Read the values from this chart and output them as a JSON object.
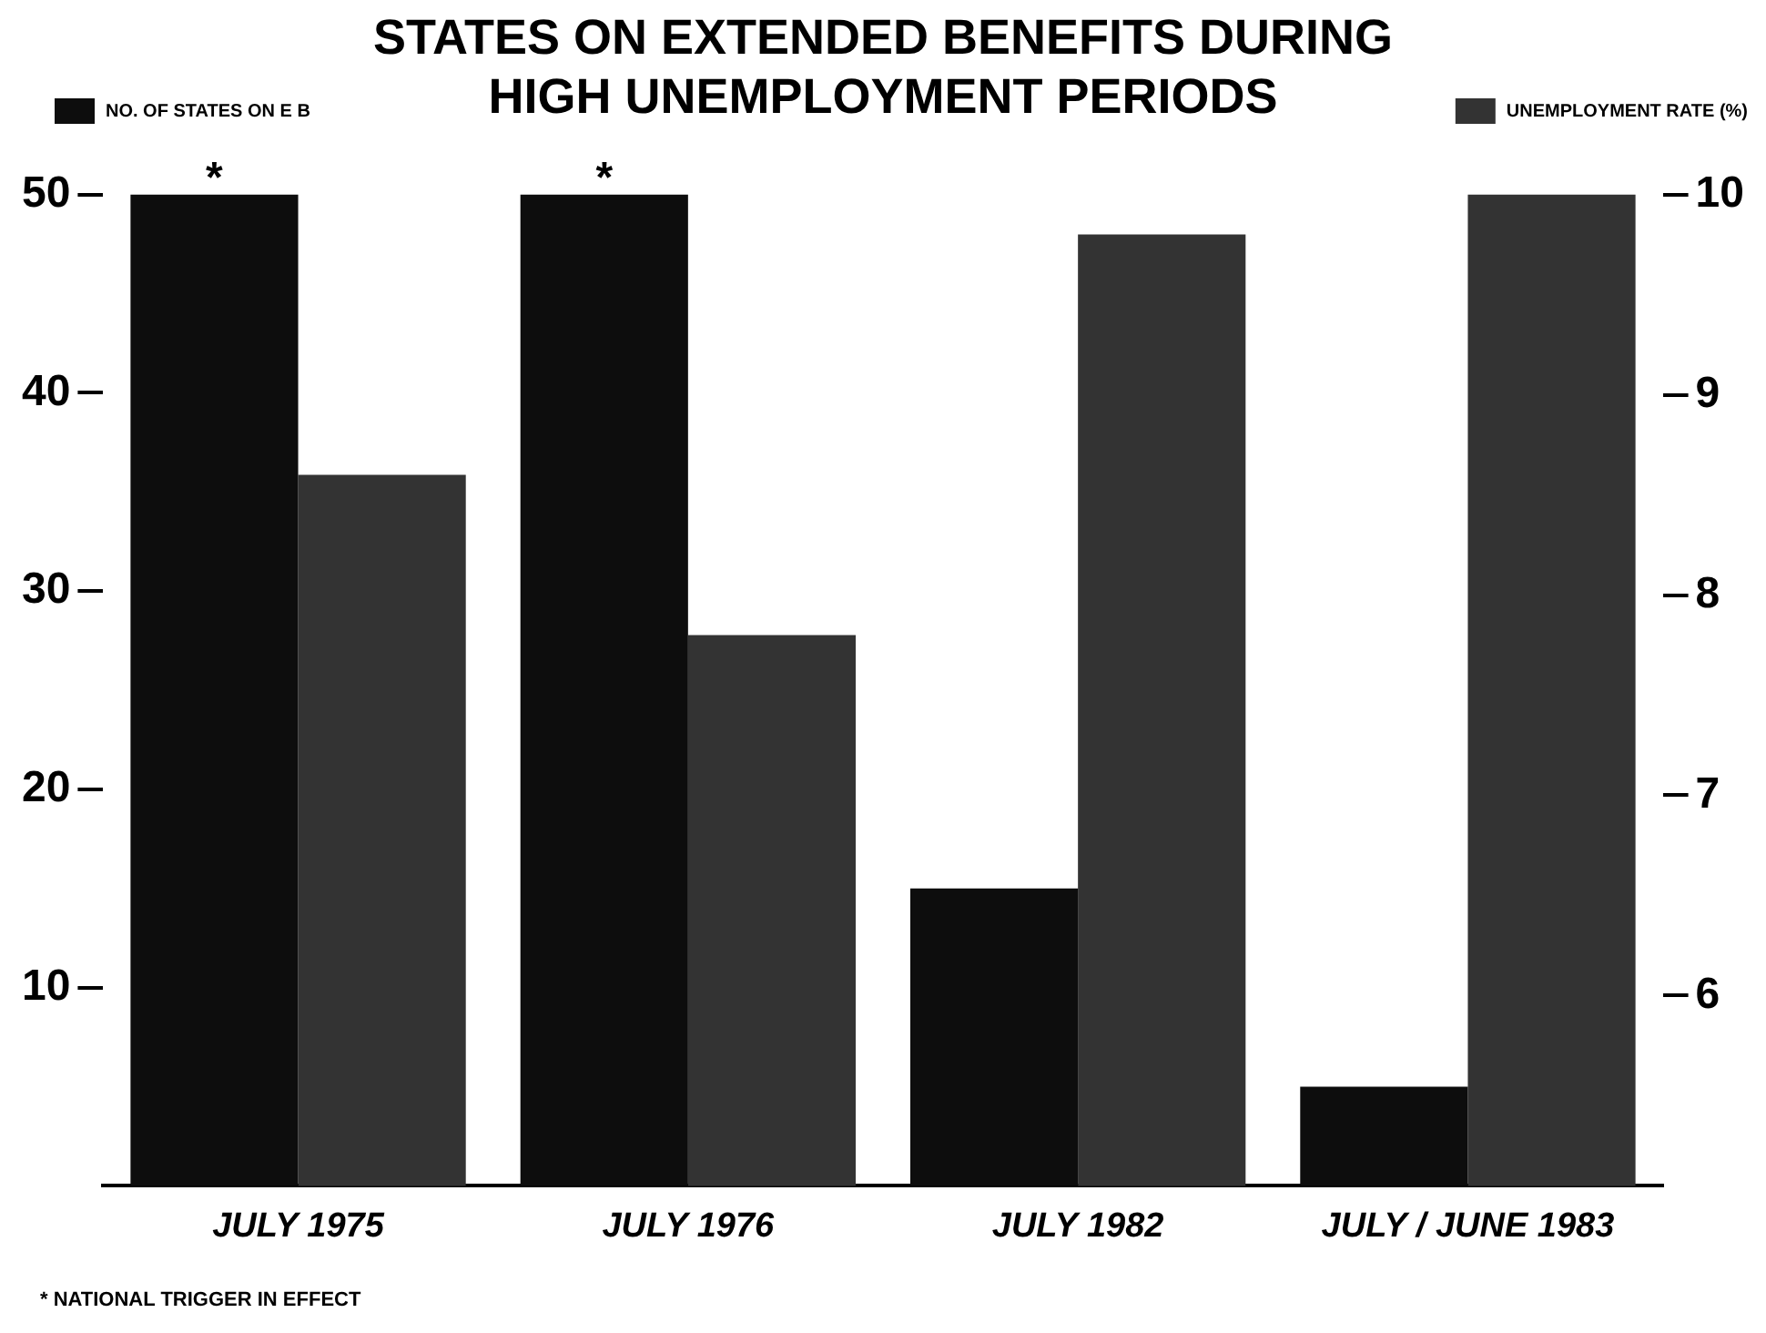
{
  "chart_data": {
    "type": "bar",
    "title": [
      "STATES ON EXTENDED BENEFITS DURING",
      "HIGH UNEMPLOYMENT PERIODS"
    ],
    "categories": [
      "JULY 1975",
      "JULY 1976",
      "JULY 1982",
      "JULY / JUNE 1983"
    ],
    "series": [
      {
        "name": "NO. OF STATES ON E B",
        "color": "#0d0d0d",
        "values": [
          50,
          50,
          15,
          5
        ]
      },
      {
        "name": "UNEMPLOYMENT RATE (%)",
        "color": "#333333",
        "values": [
          8.6,
          7.8,
          9.8,
          10
        ],
        "axis": "y2"
      }
    ],
    "ylim": [
      0,
      50
    ],
    "yticks": [
      10,
      20,
      30,
      40,
      50
    ],
    "y2lim": [
      5.05,
      10
    ],
    "y2ticks": [
      6,
      7,
      8,
      9,
      10
    ],
    "grid": false,
    "legend": "top",
    "annotations": [
      {
        "text": "*",
        "x": "JULY 1975",
        "y": 50
      },
      {
        "text": "*",
        "x": "JULY 1976",
        "y": 50
      },
      "* NATIONAL TRIGGER IN EFFECT"
    ]
  }
}
